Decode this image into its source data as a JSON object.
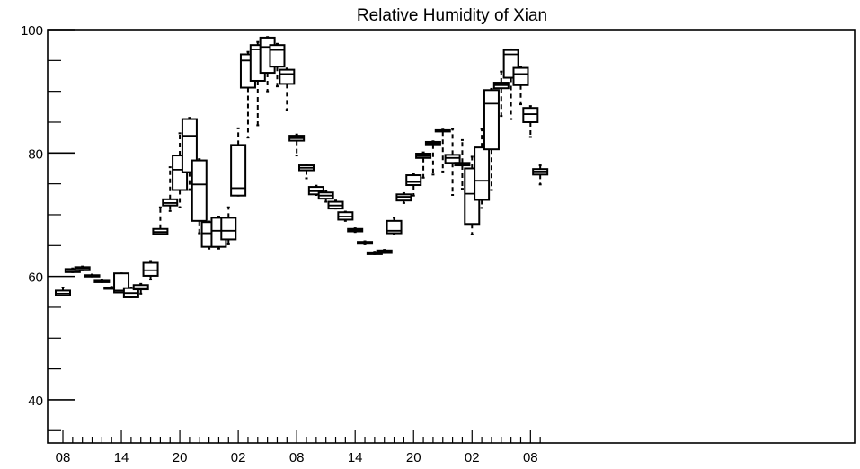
{
  "chart_data": {
    "type": "boxplot",
    "title": "Relative Humidity of Xian",
    "xlabel": "",
    "ylabel": "",
    "ylim": [
      33,
      100
    ],
    "y_ticks": [
      40,
      60,
      80,
      100
    ],
    "x_tick_labels": [
      "08",
      "14",
      "20",
      "02",
      "08",
      "14",
      "20",
      "02",
      "08"
    ],
    "x_tick_hours": [
      0,
      6,
      12,
      18,
      24,
      30,
      36,
      42,
      48
    ],
    "grid": false,
    "boxes": [
      {
        "hour": 0,
        "min": 56.9,
        "q1": 56.9,
        "median": 57.2,
        "q3": 57.7,
        "max": 58.2
      },
      {
        "hour": 1,
        "min": 60.7,
        "q1": 60.7,
        "median": 61.0,
        "q3": 61.2,
        "max": 61.3
      },
      {
        "hour": 2,
        "min": 61.0,
        "q1": 61.0,
        "median": 61.3,
        "q3": 61.5,
        "max": 61.6
      },
      {
        "hour": 3,
        "min": 60.0,
        "q1": 60.0,
        "median": 60.1,
        "q3": 60.2,
        "max": 60.3
      },
      {
        "hour": 4,
        "min": 59.1,
        "q1": 59.1,
        "median": 59.2,
        "q3": 59.3,
        "max": 59.4
      },
      {
        "hour": 5,
        "min": 58.0,
        "q1": 58.0,
        "median": 58.1,
        "q3": 58.2,
        "max": 58.3
      },
      {
        "hour": 6,
        "min": 57.4,
        "q1": 57.4,
        "median": 57.7,
        "q3": 60.5,
        "max": 60.5
      },
      {
        "hour": 7,
        "min": 56.6,
        "q1": 56.6,
        "median": 57.3,
        "q3": 58.1,
        "max": 58.2
      },
      {
        "hour": 8,
        "min": 57.2,
        "q1": 57.9,
        "median": 58.1,
        "q3": 58.6,
        "max": 58.8
      },
      {
        "hour": 9,
        "min": 59.5,
        "q1": 60.1,
        "median": 61.0,
        "q3": 62.2,
        "max": 62.5
      },
      {
        "hour": 10,
        "min": 66.9,
        "q1": 66.9,
        "median": 67.2,
        "q3": 67.7,
        "max": 71.2
      },
      {
        "hour": 11,
        "min": 70.6,
        "q1": 71.5,
        "median": 71.9,
        "q3": 72.5,
        "max": 77.7
      },
      {
        "hour": 12,
        "min": 71.2,
        "q1": 74.0,
        "median": 77.3,
        "q3": 79.6,
        "max": 83.2
      },
      {
        "hour": 13,
        "min": 74.0,
        "q1": 76.9,
        "median": 82.8,
        "q3": 85.5,
        "max": 85.7
      },
      {
        "hour": 14,
        "min": 67.0,
        "q1": 69.0,
        "median": 74.9,
        "q3": 78.8,
        "max": 79.0
      },
      {
        "hour": 15,
        "min": 64.5,
        "q1": 64.8,
        "median": 67.0,
        "q3": 68.8,
        "max": 68.9
      },
      {
        "hour": 16,
        "min": 64.5,
        "q1": 64.8,
        "median": 67.4,
        "q3": 69.5,
        "max": 69.7
      },
      {
        "hour": 17,
        "min": 65.2,
        "q1": 66.0,
        "median": 67.4,
        "q3": 69.5,
        "max": 71.2
      },
      {
        "hour": 18,
        "min": 73.1,
        "q1": 73.1,
        "median": 74.3,
        "q3": 81.3,
        "max": 84.0
      },
      {
        "hour": 19,
        "min": 82.5,
        "q1": 90.6,
        "median": 95.0,
        "q3": 96.0,
        "max": 96.4
      },
      {
        "hour": 20,
        "min": 84.5,
        "q1": 91.7,
        "median": 96.8,
        "q3": 97.5,
        "max": 98.0
      },
      {
        "hour": 21,
        "min": 90.0,
        "q1": 93.0,
        "median": 97.2,
        "q3": 98.7,
        "max": 98.8
      },
      {
        "hour": 22,
        "min": 90.8,
        "q1": 94.0,
        "median": 96.7,
        "q3": 97.5,
        "max": 97.7
      },
      {
        "hour": 23,
        "min": 87.0,
        "q1": 91.2,
        "median": 92.8,
        "q3": 93.5,
        "max": 93.7
      },
      {
        "hour": 24,
        "min": 79.6,
        "q1": 82.0,
        "median": 82.4,
        "q3": 82.8,
        "max": 83.0
      },
      {
        "hour": 25,
        "min": 75.9,
        "q1": 77.2,
        "median": 77.6,
        "q3": 78.0,
        "max": 78.1
      },
      {
        "hour": 26,
        "min": 73.2,
        "q1": 73.3,
        "median": 73.8,
        "q3": 74.5,
        "max": 74.7
      },
      {
        "hour": 27,
        "min": 72.1,
        "q1": 72.6,
        "median": 73.1,
        "q3": 73.6,
        "max": 73.8
      },
      {
        "hour": 28,
        "min": 71.0,
        "q1": 71.0,
        "median": 71.5,
        "q3": 72.1,
        "max": 72.3
      },
      {
        "hour": 29,
        "min": 69.0,
        "q1": 69.2,
        "median": 69.7,
        "q3": 70.4,
        "max": 70.5
      },
      {
        "hour": 30,
        "min": 67.2,
        "q1": 67.3,
        "median": 67.5,
        "q3": 67.7,
        "max": 67.8
      },
      {
        "hour": 31,
        "min": 65.2,
        "q1": 65.3,
        "median": 65.5,
        "q3": 65.6,
        "max": 65.7
      },
      {
        "hour": 32,
        "min": 63.6,
        "q1": 63.6,
        "median": 63.8,
        "q3": 63.9,
        "max": 64.0
      },
      {
        "hour": 33,
        "min": 63.8,
        "q1": 63.8,
        "median": 64.0,
        "q3": 64.2,
        "max": 64.3
      },
      {
        "hour": 34,
        "min": 66.9,
        "q1": 67.0,
        "median": 67.4,
        "q3": 69.0,
        "max": 69.5
      },
      {
        "hour": 35,
        "min": 71.9,
        "q1": 72.3,
        "median": 72.9,
        "q3": 73.3,
        "max": 73.5
      },
      {
        "hour": 36,
        "min": 73.1,
        "q1": 74.8,
        "median": 75.3,
        "q3": 76.4,
        "max": 76.6
      },
      {
        "hour": 37,
        "min": 76.0,
        "q1": 79.2,
        "median": 79.5,
        "q3": 79.9,
        "max": 80.1
      },
      {
        "hour": 38,
        "min": 76.5,
        "q1": 81.4,
        "median": 81.6,
        "q3": 81.8,
        "max": 81.9
      },
      {
        "hour": 39,
        "min": 77.0,
        "q1": 83.5,
        "median": 83.6,
        "q3": 83.7,
        "max": 83.8
      },
      {
        "hour": 40,
        "min": 73.2,
        "q1": 78.4,
        "median": 79.2,
        "q3": 79.7,
        "max": 83.9
      },
      {
        "hour": 41,
        "min": 74.2,
        "q1": 78.0,
        "median": 78.2,
        "q3": 78.4,
        "max": 82.1
      },
      {
        "hour": 42,
        "min": 66.8,
        "q1": 68.5,
        "median": 73.4,
        "q3": 77.5,
        "max": 79.4
      },
      {
        "hour": 43,
        "min": 71.1,
        "q1": 72.4,
        "median": 75.5,
        "q3": 80.9,
        "max": 83.9
      },
      {
        "hour": 44,
        "min": 74.0,
        "q1": 80.6,
        "median": 88.0,
        "q3": 90.2,
        "max": 90.4
      },
      {
        "hour": 45,
        "min": 86.0,
        "q1": 90.5,
        "median": 91.0,
        "q3": 91.4,
        "max": 93.2
      },
      {
        "hour": 46,
        "min": 85.5,
        "q1": 92.2,
        "median": 96.0,
        "q3": 96.7,
        "max": 96.8
      },
      {
        "hour": 47,
        "min": 87.9,
        "q1": 91.0,
        "median": 92.8,
        "q3": 93.8,
        "max": 94.0
      },
      {
        "hour": 48,
        "min": 82.6,
        "q1": 85.0,
        "median": 86.3,
        "q3": 87.3,
        "max": 87.6
      },
      {
        "hour": 49,
        "min": 74.9,
        "q1": 76.5,
        "median": 77.0,
        "q3": 77.4,
        "max": 78.0
      }
    ]
  }
}
